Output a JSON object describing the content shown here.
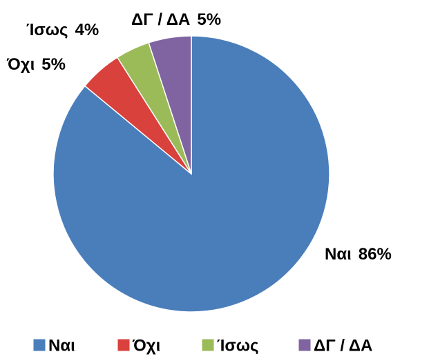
{
  "chart_data": {
    "type": "pie",
    "categories": [
      "Ναι",
      "Όχι",
      "Ίσως",
      "ΔΓ / ΔΑ"
    ],
    "values": [
      86,
      5,
      4,
      5
    ],
    "value_labels": [
      "86%",
      "5%",
      "4%",
      "5%"
    ],
    "colors": [
      "#4a7ebb",
      "#d9413c",
      "#9bbb59",
      "#8064a2"
    ],
    "legend": "bottom"
  }
}
